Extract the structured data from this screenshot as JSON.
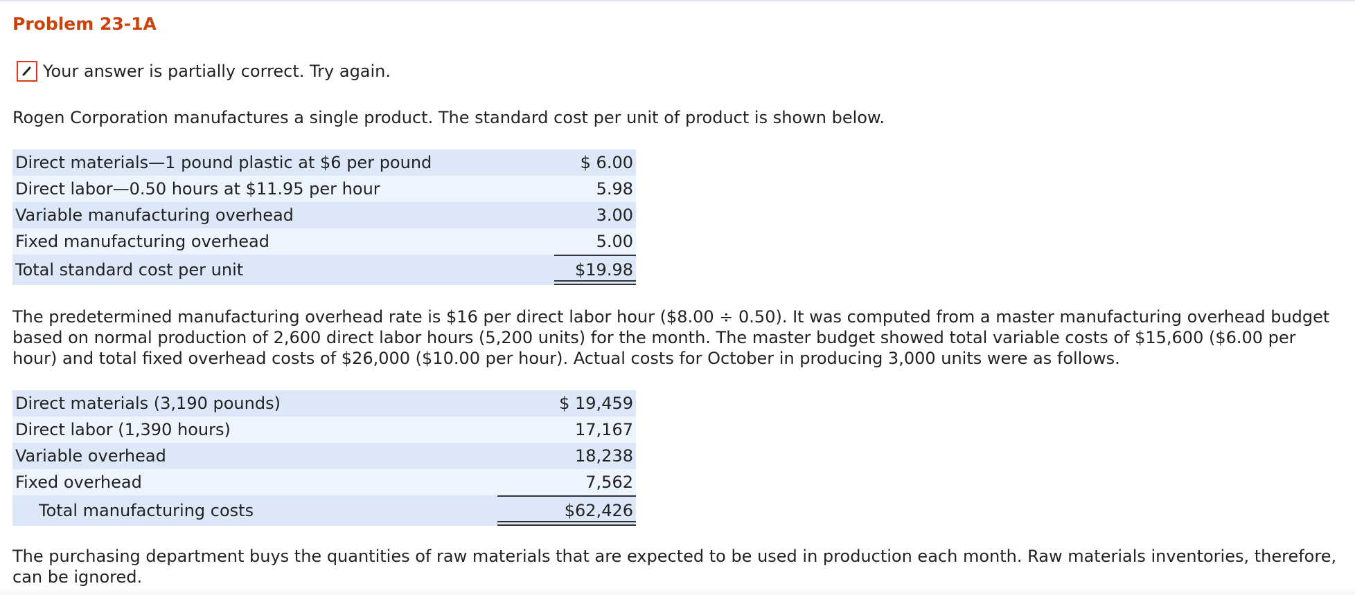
{
  "header": {
    "problem_title": "Problem 23-1A"
  },
  "status": {
    "icon": "pencil-icon",
    "message": "Your answer is partially correct.  Try again.",
    "accent_color": "#d9391a"
  },
  "intro_text": "Rogen Corporation manufactures a single product. The standard cost per unit of product is shown below.",
  "standard_cost": {
    "rows": [
      {
        "label": "Direct materials—1 pound plastic at $6 per pound",
        "amount": "$ 6.00"
      },
      {
        "label": "Direct labor—0.50 hours at $11.95 per hour",
        "amount": "5.98"
      },
      {
        "label": "Variable manufacturing overhead",
        "amount": "3.00"
      },
      {
        "label": "Fixed manufacturing overhead",
        "amount": "5.00"
      }
    ],
    "total": {
      "label": "Total standard cost per unit",
      "amount": "$19.98"
    }
  },
  "rate_text": "The predetermined manufacturing overhead rate is $16 per direct labor hour ($8.00 ÷ 0.50). It was computed from a master manufacturing overhead budget based on normal production of 2,600 direct labor hours (5,200 units) for the month. The master budget showed total variable costs of $15,600 ($6.00 per hour) and total fixed overhead costs of $26,000 ($10.00 per hour). Actual costs for October in producing 3,000 units were as follows.",
  "actual_costs": {
    "rows": [
      {
        "label": "Direct materials (3,190 pounds)",
        "amount": "$ 19,459"
      },
      {
        "label": "Direct labor (1,390 hours)",
        "amount": "17,167"
      },
      {
        "label": "Variable overhead",
        "amount": "18,238"
      },
      {
        "label": "Fixed overhead",
        "amount": "7,562"
      }
    ],
    "total": {
      "label": "Total manufacturing costs",
      "amount": "$62,426"
    }
  },
  "purchasing_text": "The purchasing department buys the quantities of raw materials that are expected to be used in production each month. Raw materials inventories, therefore, can be ignored.",
  "colors": {
    "title": "#c8440c",
    "row_dark": "#dce8f8",
    "row_light": "#eef4fd"
  }
}
